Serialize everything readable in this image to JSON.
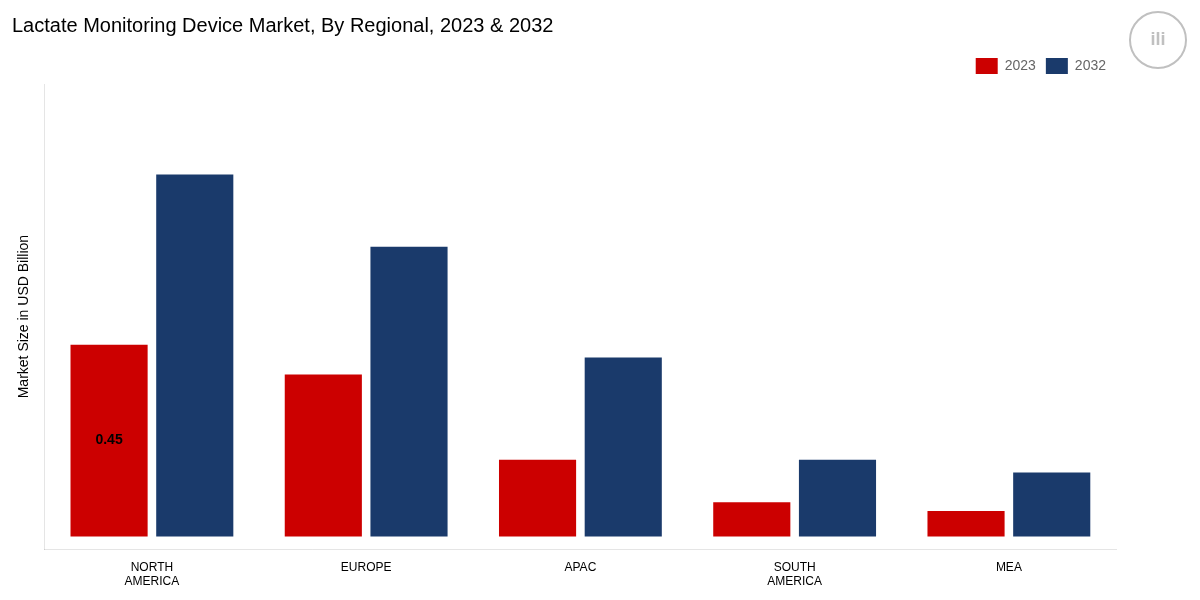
{
  "chart_data": {
    "type": "bar",
    "title": "Lactate Monitoring Device Market, By Regional, 2023 & 2032",
    "ylabel": "Market Size in USD Billion",
    "categories": [
      "NORTH\nAMERICA",
      "EUROPE",
      "APAC",
      "SOUTH\nAMERICA",
      "MEA"
    ],
    "series": [
      {
        "name": "2023",
        "color": "#cc0000",
        "values": [
          0.45,
          0.38,
          0.18,
          0.08,
          0.06
        ]
      },
      {
        "name": "2032",
        "color": "#1a3a6b",
        "values": [
          0.85,
          0.68,
          0.42,
          0.18,
          0.15
        ]
      }
    ],
    "ylim": [
      -0.03,
      1.0625
    ],
    "yticks": [],
    "tick_labels": "x",
    "grid": false,
    "legend": "top",
    "annotations": [
      {
        "text": "0.45",
        "x": "NORTH\nAMERICA",
        "series": "2023"
      },
      {
        "text": "ili"
      }
    ]
  }
}
